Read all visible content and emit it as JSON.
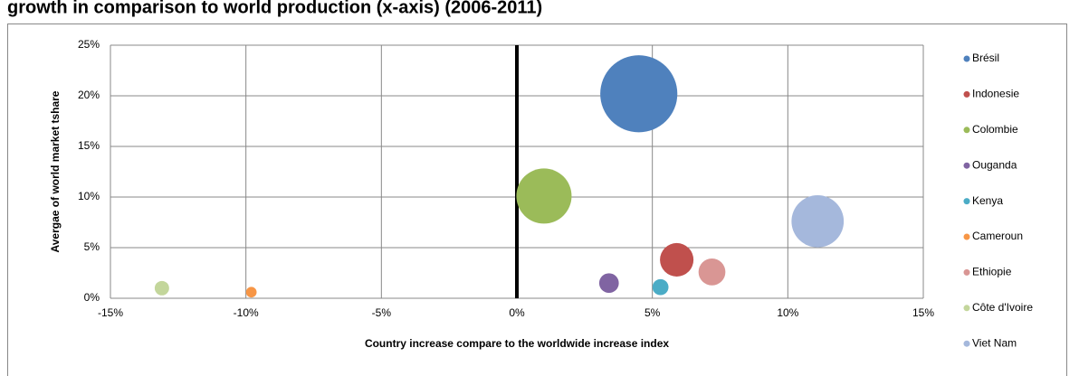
{
  "chart_data": {
    "type": "bubble",
    "title": "growth in comparison to world production (x-axis) (2006-2011)",
    "x_label": "Country increase compare to the worldwide increase index",
    "y_label": "Avergae of world market tshare",
    "xlim": [
      -15,
      15
    ],
    "xticks": [
      {
        "value": -15,
        "label": "-15%"
      },
      {
        "value": -10,
        "label": "-10%"
      },
      {
        "value": -5,
        "label": "-5%"
      },
      {
        "value": 0,
        "label": "0%"
      },
      {
        "value": 5,
        "label": "5%"
      },
      {
        "value": 10,
        "label": "10%"
      },
      {
        "value": 15,
        "label": "15%"
      }
    ],
    "ylim": [
      0,
      25
    ],
    "yticks": [
      {
        "value": 0,
        "label": "0%"
      },
      {
        "value": 5,
        "label": "5%"
      },
      {
        "value": 10,
        "label": "10%"
      },
      {
        "value": 15,
        "label": "15%"
      },
      {
        "value": 20,
        "label": "20%"
      },
      {
        "value": 25,
        "label": "25%"
      }
    ],
    "grid": true,
    "legend": "right",
    "series": [
      {
        "name": "Brésil",
        "color": "#4f81bd",
        "x": [
          4.5
        ],
        "values": [
          20.2
        ],
        "sizes": [
          37
        ]
      },
      {
        "name": "Indonesie",
        "color": "#c0504d",
        "x": [
          5.9
        ],
        "values": [
          3.8
        ],
        "sizes": [
          7
        ]
      },
      {
        "name": "Colombie",
        "color": "#9bbb59",
        "x": [
          1.0
        ],
        "values": [
          10.1
        ],
        "sizes": [
          19
        ]
      },
      {
        "name": "Ouganda",
        "color": "#8064a2",
        "x": [
          3.4
        ],
        "values": [
          1.5
        ],
        "sizes": [
          2.4
        ]
      },
      {
        "name": "Kenya",
        "color": "#4bacc6",
        "x": [
          5.3
        ],
        "values": [
          1.1
        ],
        "sizes": [
          1.6
        ]
      },
      {
        "name": "Cameroun",
        "color": "#f79646",
        "x": [
          -9.8
        ],
        "values": [
          0.6
        ],
        "sizes": [
          0.7
        ]
      },
      {
        "name": "Ethiopie",
        "color": "#d99694",
        "x": [
          7.2
        ],
        "values": [
          2.6
        ],
        "sizes": [
          4.5
        ]
      },
      {
        "name": "Côte d'Ivoire",
        "color": "#c3d69b",
        "x": [
          -13.1
        ],
        "values": [
          1.0
        ],
        "sizes": [
          1.3
        ]
      },
      {
        "name": "Viet Nam",
        "color": "#a5b8dc",
        "x": [
          11.1
        ],
        "values": [
          7.6
        ],
        "sizes": [
          17
        ]
      }
    ]
  }
}
